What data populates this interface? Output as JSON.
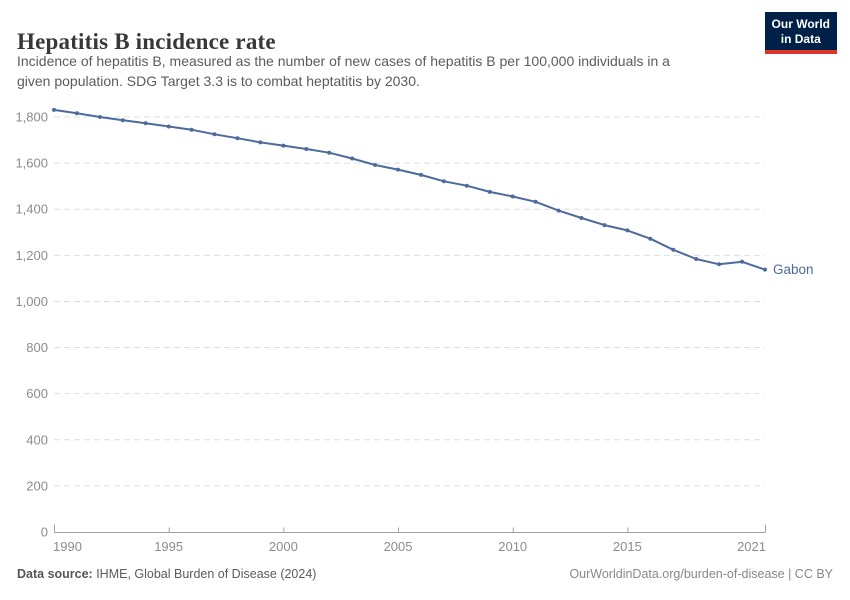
{
  "header": {
    "title": "Hepatitis B incidence rate",
    "subtitle_lines": [
      "Incidence of hepatitis B, measured as the number of new cases of hepatitis B per 100,000 individuals in a",
      "given population. SDG Target 3.3 is to combat heptatitis by 2030."
    ],
    "logo": {
      "line1": "Our World",
      "line2": "in Data"
    }
  },
  "chart_data": {
    "type": "line",
    "title": "Hepatitis B incidence rate",
    "xlabel": "",
    "ylabel": "",
    "xlim": [
      1990,
      2021
    ],
    "ylim": [
      0,
      1800
    ],
    "xticks": [
      1990,
      1995,
      2000,
      2005,
      2010,
      2015,
      2021
    ],
    "yticks": [
      0,
      200,
      400,
      600,
      800,
      1000,
      1200,
      1400,
      1600,
      1800
    ],
    "grid": "horizontal-dashed",
    "legend_position": "end-of-line-label",
    "x": [
      1990,
      1991,
      1992,
      1993,
      1994,
      1995,
      1996,
      1997,
      1998,
      1999,
      2000,
      2001,
      2002,
      2003,
      2004,
      2005,
      2006,
      2007,
      2008,
      2009,
      2010,
      2011,
      2012,
      2013,
      2014,
      2015,
      2016,
      2017,
      2018,
      2019,
      2020,
      2021
    ],
    "series": [
      {
        "name": "Gabon",
        "color": "#4C6A9C",
        "values": [
          1831,
          1816,
          1800,
          1786,
          1773,
          1759,
          1745,
          1725,
          1708,
          1690,
          1676,
          1661,
          1645,
          1620,
          1592,
          1572,
          1549,
          1521,
          1502,
          1475,
          1455,
          1432,
          1394,
          1362,
          1331,
          1308,
          1272,
          1224,
          1184,
          1161,
          1172,
          1138
        ]
      }
    ]
  },
  "footer": {
    "datasource_label": "Data source:",
    "datasource_value": " IHME, Global Burden of Disease (2024)",
    "credit_link": "OurWorldinData.org/burden-of-disease",
    "credit_license": " | CC BY"
  },
  "colors": {
    "line": "#4C6A9C",
    "grid": "#dedede",
    "axis": "#a0a0a0",
    "tick_label": "#8c8c8c",
    "logo_bg": "#002147",
    "logo_red": "#dc352c"
  }
}
